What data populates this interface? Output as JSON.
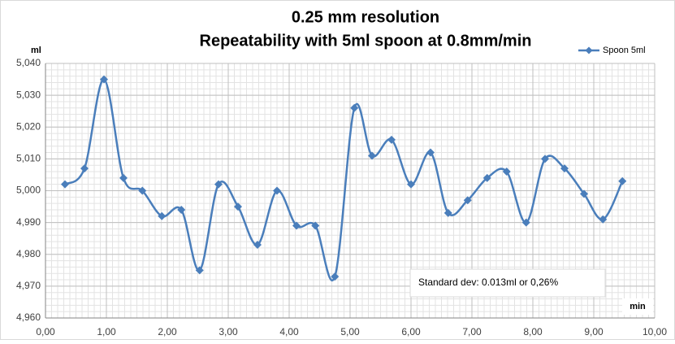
{
  "chart_data": {
    "type": "scatter-smooth",
    "title": [
      "0.25 mm resolution",
      "Repeatability with 5ml spoon at 0.8mm/min"
    ],
    "y_label": "ml",
    "x_label": "min",
    "annotation": "Standard dev: 0.013ml or 0,26%",
    "legend": "upper right",
    "x": [
      0.32,
      0.64,
      0.96,
      1.28,
      1.59,
      1.91,
      2.23,
      2.53,
      2.84,
      3.16,
      3.48,
      3.8,
      4.12,
      4.43,
      4.75,
      5.07,
      5.36,
      5.68,
      6.0,
      6.32,
      6.61,
      6.93,
      7.25,
      7.57,
      7.89,
      8.2,
      8.52,
      8.84,
      9.15,
      9.47
    ],
    "series": [
      {
        "name": "Spoon 5ml",
        "color": "#4a7ebb",
        "values": [
          5.002,
          5.007,
          5.035,
          5.004,
          5.0,
          4.992,
          4.994,
          4.975,
          5.002,
          4.995,
          4.983,
          5.0,
          4.989,
          4.989,
          4.973,
          5.026,
          5.011,
          5.016,
          5.002,
          5.012,
          4.993,
          4.997,
          5.004,
          5.006,
          4.99,
          5.01,
          5.007,
          4.999,
          4.991,
          5.003
        ]
      }
    ],
    "xlim": [
      0,
      10
    ],
    "xticks": [
      {
        "value": 0,
        "label": "0,00"
      },
      {
        "value": 1,
        "label": "1,00"
      },
      {
        "value": 2,
        "label": "2,00"
      },
      {
        "value": 3,
        "label": "3,00"
      },
      {
        "value": 4,
        "label": "4,00"
      },
      {
        "value": 5,
        "label": "5,00"
      },
      {
        "value": 6,
        "label": "6,00"
      },
      {
        "value": 7,
        "label": "7,00"
      },
      {
        "value": 8,
        "label": "8,00"
      },
      {
        "value": 9,
        "label": "9,00"
      },
      {
        "value": 10,
        "label": "10,00"
      }
    ],
    "ylim": [
      4.96,
      5.04
    ],
    "yticks": [
      {
        "value": 4.96,
        "label": "4,960"
      },
      {
        "value": 4.97,
        "label": "4,970"
      },
      {
        "value": 4.98,
        "label": "4,980"
      },
      {
        "value": 4.99,
        "label": "4,990"
      },
      {
        "value": 5.0,
        "label": "5,000"
      },
      {
        "value": 5.01,
        "label": "5,010"
      },
      {
        "value": 5.02,
        "label": "5,020"
      },
      {
        "value": 5.03,
        "label": "5,030"
      },
      {
        "value": 5.04,
        "label": "5,040"
      }
    ],
    "grid": true,
    "minor_grid": {
      "x": 0.1,
      "y": 0.002
    }
  }
}
